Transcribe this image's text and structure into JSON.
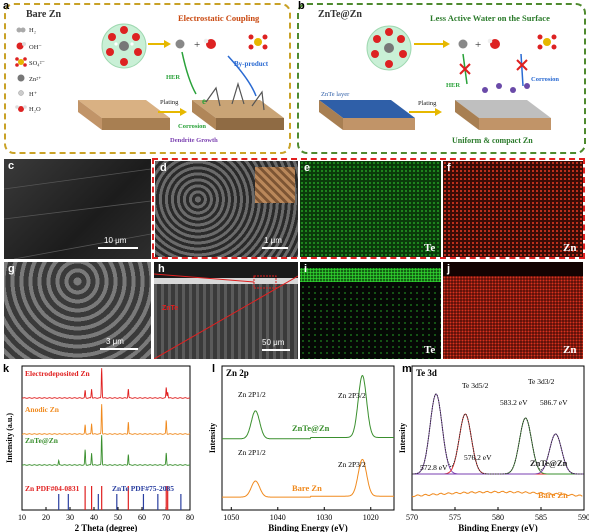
{
  "panel_a": {
    "label": "a",
    "title": "Bare Zn",
    "subtitle": "Electrostatic Coupling",
    "legend": [
      "H₂",
      "OH⁻",
      "SO₄²⁻",
      "Zn²⁺",
      "H⁺",
      "H₂O"
    ],
    "hint_her": "HER",
    "hint_byproduct": "By-product",
    "hint_plating": "Plating",
    "hint_e": "e",
    "hint_corrosion": "Corrosion",
    "hint_dendrite": "Dendrite Growth"
  },
  "panel_b": {
    "label": "b",
    "title": "ZnTe@Zn",
    "subtitle": "Less Active Water on the Surface",
    "hint_layer": "ZnTe layer",
    "hint_her": "HER",
    "hint_corrosion": "Corrosion",
    "hint_plating": "Plating",
    "hint_uniform": "Uniform & compact Zn"
  },
  "panels_sem": {
    "c": {
      "label": "c",
      "scale": "10 μm"
    },
    "d": {
      "label": "d",
      "scale": "1 μm"
    },
    "e": {
      "label": "e",
      "element": "Te"
    },
    "f": {
      "label": "f",
      "element": "Zn"
    },
    "g": {
      "label": "g",
      "scale": "3 μm"
    },
    "h": {
      "label": "h",
      "scale": "50 μm",
      "inset": "ZnTe"
    },
    "i": {
      "label": "i",
      "element": "Te"
    },
    "j": {
      "label": "j",
      "element": "Zn"
    }
  },
  "panel_k": {
    "label": "k",
    "chart_data": {
      "type": "line",
      "xlabel": "2 Theta (degree)",
      "ylabel": "Intensity (a.u.)",
      "xlim": [
        10,
        80
      ],
      "xticks": [
        10,
        20,
        30,
        40,
        50,
        60,
        70,
        80
      ],
      "series": [
        {
          "name": "Electrodeposited Zn",
          "color": "#e02020",
          "peaks": [
            [
              36.3,
              0.25
            ],
            [
              39.0,
              0.3
            ],
            [
              43.2,
              1.0
            ],
            [
              54.3,
              0.3
            ],
            [
              70.1,
              0.35
            ],
            [
              70.7,
              0.2
            ]
          ]
        },
        {
          "name": "Anodic Zn",
          "color": "#f08a1e",
          "peaks": [
            [
              36.3,
              0.3
            ],
            [
              39.0,
              0.35
            ],
            [
              43.2,
              1.0
            ],
            [
              54.3,
              0.4
            ],
            [
              70.1,
              0.45
            ]
          ]
        },
        {
          "name": "ZnTe@Zn",
          "color": "#3a8f2e",
          "peaks": [
            [
              25.3,
              0.15
            ],
            [
              36.3,
              0.5
            ],
            [
              39.0,
              0.4
            ],
            [
              43.2,
              1.0
            ],
            [
              54.3,
              0.35
            ],
            [
              70.1,
              0.4
            ]
          ]
        }
      ],
      "references": [
        {
          "name": "Zn PDF#04-0831",
          "color": "#e02020",
          "lines": [
            36.3,
            39.0,
            43.2,
            54.3,
            70.1,
            70.7
          ]
        },
        {
          "name": "ZnTe PDF#75-2085",
          "color": "#2a3fa0",
          "lines": [
            25.3,
            29.3,
            41.8,
            49.5,
            60.6,
            66.6,
            76.2
          ]
        }
      ]
    }
  },
  "panel_l": {
    "label": "l",
    "chart_data": {
      "type": "line",
      "title": "Zn 2p",
      "xlabel": "Binding Energy (eV)",
      "ylabel": "Intensity",
      "xlim": [
        1052,
        1015
      ],
      "xticks": [
        1050,
        1040,
        1030,
        1020
      ],
      "series": [
        {
          "name": "ZnTe@Zn",
          "color": "#3a8f2e",
          "peaks": [
            [
              1044.8,
              0.45
            ],
            [
              1021.8,
              1.0
            ]
          ]
        },
        {
          "name": "Bare Zn",
          "color": "#f08a1e",
          "peaks": [
            [
              1044.8,
              0.35
            ],
            [
              1021.8,
              0.8
            ]
          ]
        }
      ],
      "annotations": [
        "Zn 2P1/2",
        "Zn 2P3/2",
        "Zn 2P1/2",
        "Zn 2P3/2"
      ]
    }
  },
  "panel_m": {
    "label": "m",
    "chart_data": {
      "type": "line",
      "title": "Te 3d",
      "xlabel": "Binding Energy (eV)",
      "ylabel": "Intensity",
      "xlim": [
        570,
        590
      ],
      "xticks": [
        570,
        575,
        580,
        585,
        590
      ],
      "series": [
        {
          "name": "ZnTe@Zn",
          "color": "#333333",
          "peaks": [
            [
              572.8,
              1.0
            ],
            [
              576.2,
              0.75
            ],
            [
              583.2,
              0.7
            ],
            [
              586.7,
              0.5
            ]
          ]
        },
        {
          "name": "Bare Zn",
          "color": "#f08a1e",
          "peaks": []
        }
      ],
      "annotations": [
        "Te 3d5/2",
        "Te 3d3/2",
        "572.8 eV",
        "576.2 eV",
        "583.2 eV",
        "586.7 eV"
      ]
    }
  },
  "colors": {
    "gold": "#c9a227",
    "green": "#4e8a2e",
    "red": "#e02020",
    "orange": "#f08a1e",
    "te_green": "#28c828",
    "zn_red": "#e0321e"
  }
}
